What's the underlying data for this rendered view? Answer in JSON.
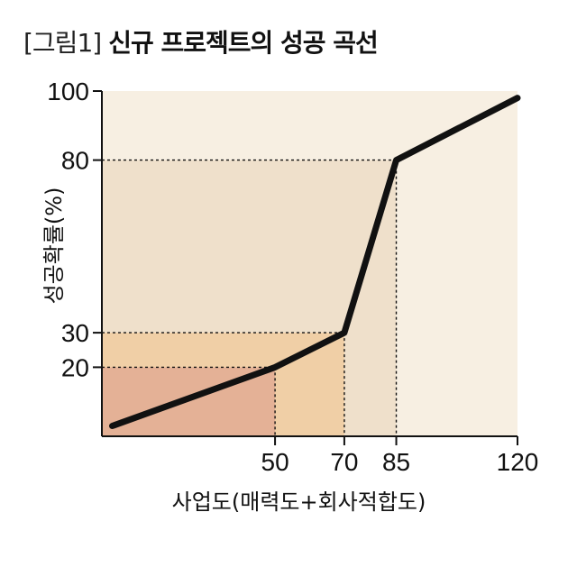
{
  "title": {
    "tag": "[그림1]",
    "main": "신규 프로젝트의 성공 곡선"
  },
  "colors": {
    "plot_bg": "#f7efe2",
    "region_85": "#efe0cb",
    "region_70": "#f0cfa6",
    "region_50": "#e4b196",
    "line": "#111111",
    "guide": "#111111"
  },
  "chart_data": {
    "type": "line",
    "title": "신규 프로젝트의 성공 곡선",
    "xlabel": "사업도(매력도+회사적합도)",
    "ylabel": "성공확률(%)",
    "xlim": [
      0,
      120
    ],
    "ylim": [
      0,
      100
    ],
    "x_ticks": [
      50,
      70,
      85,
      120
    ],
    "y_ticks": [
      20,
      30,
      80,
      100
    ],
    "grid": false,
    "series": [
      {
        "x": [
          3,
          50,
          70,
          85,
          120
        ],
        "y": [
          3,
          20,
          30,
          80,
          98
        ]
      }
    ],
    "guides": [
      {
        "x": 50,
        "y": 20
      },
      {
        "x": 70,
        "y": 30
      },
      {
        "x": 85,
        "y": 80
      }
    ]
  }
}
